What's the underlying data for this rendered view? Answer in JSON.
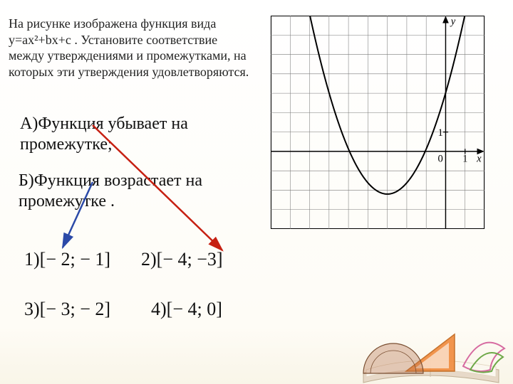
{
  "intro_text": "На рисунке изображена функция вида y=ax²+bx+c . Установите соответствие между утверждениями и промежутками, на которых эти утверждения удовлетворяются.",
  "statements": {
    "A": "А)Функция убывает на промежутке;",
    "B": "Б)Функция возрастает на промежутке ."
  },
  "options": {
    "o1": "1)[− 2; − 1]",
    "o2": "2)[− 4; −3]",
    "o3": "3)[− 3; − 2]",
    "o4": "4)[− 4; 0]"
  },
  "axis_labels": {
    "x": "x",
    "y": "y",
    "zero": "0",
    "one": "1"
  },
  "arrows": {
    "blue_color": "#2b4aa8",
    "red_color": "#c62012"
  },
  "graph": {
    "grid_cells_x": 11,
    "grid_cells_y": 11,
    "cell": 30,
    "origin_col": 9,
    "origin_row": 7,
    "grid_color": "#7a7a7a",
    "grid_width": 0.6,
    "border_color": "#000000",
    "axis_color": "#000000",
    "curve_color": "#000000",
    "curve_width": 2.2,
    "parabola": {
      "h": -3,
      "k": -2.2,
      "a": 0.58
    },
    "x_range": [
      -7.2,
      1.2
    ]
  },
  "art": {
    "book_cover": "#e7d9c8",
    "book_page": "#fbf7ef",
    "book_edge": "#c9b9a2",
    "triangle_fill": "#f08a3c",
    "triangle_stroke": "#c06418",
    "protractor_fill": "rgba(180,110,72,0.35)",
    "protractor_stroke": "#7a4f32",
    "curve_pink": "#d66aa0",
    "curve_green": "#6ea848"
  }
}
